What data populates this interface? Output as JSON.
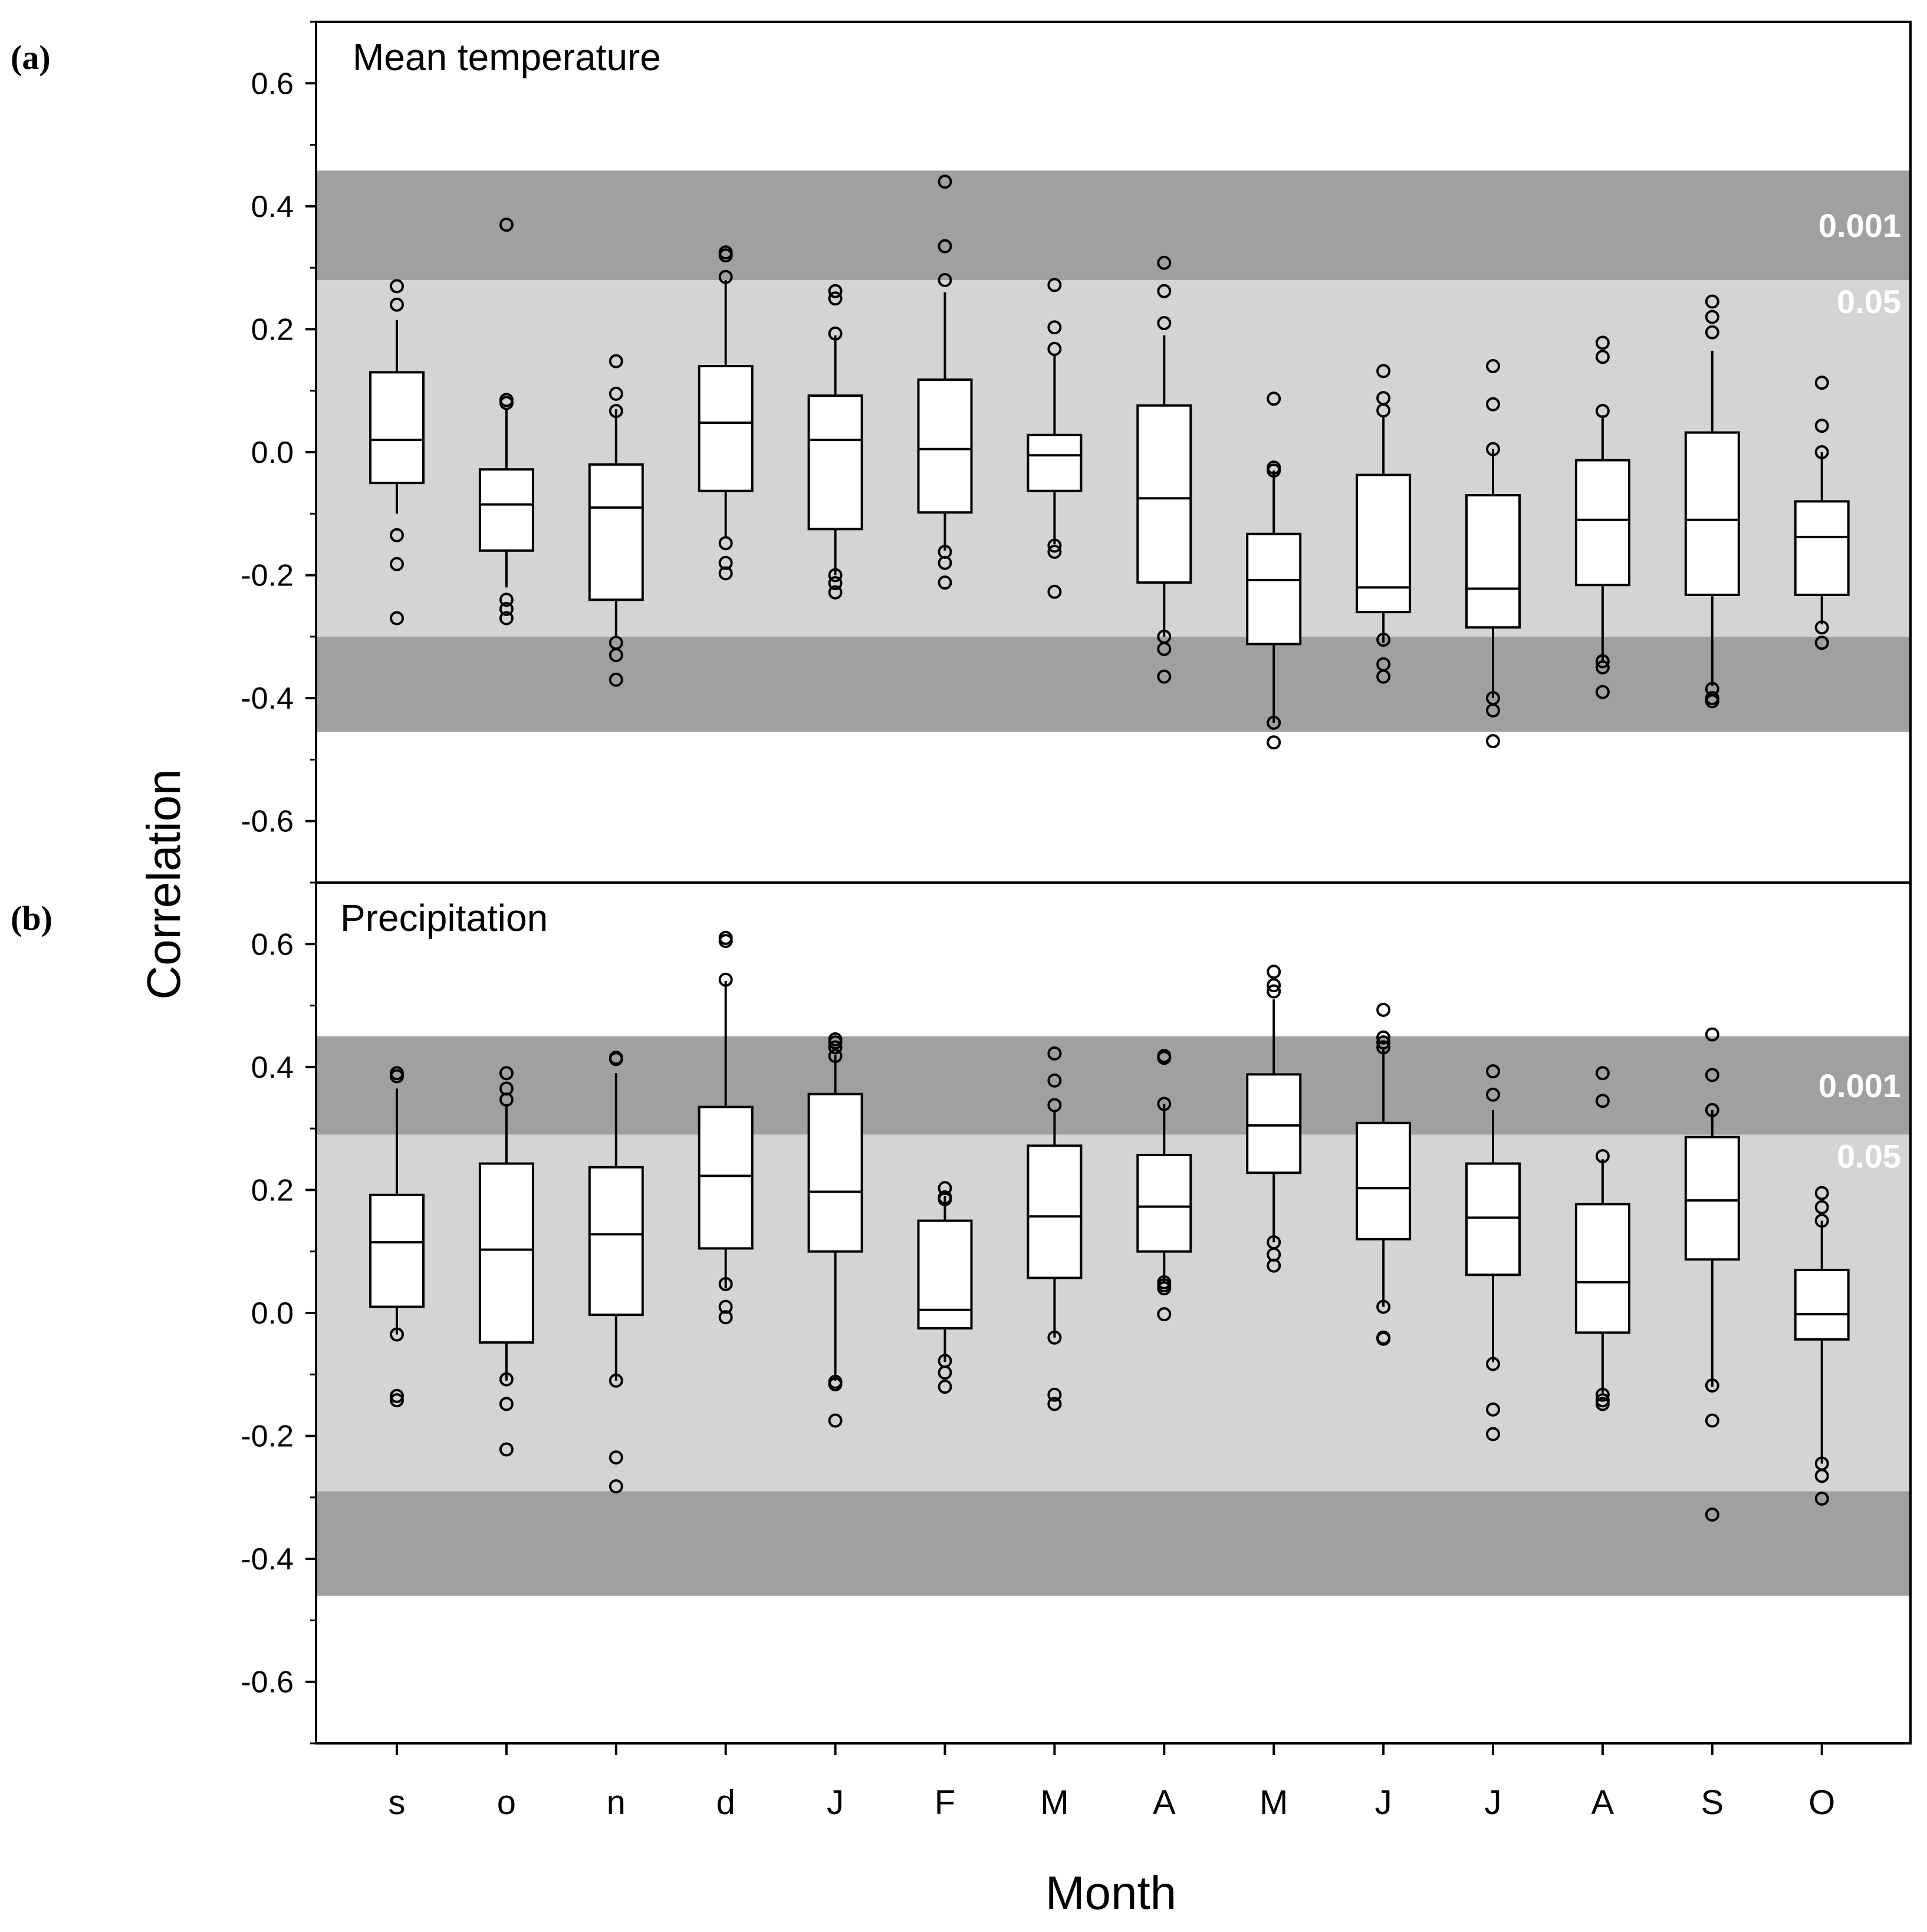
{
  "chart_data": {
    "type": "box",
    "xlabel": "Month",
    "ylabel": "Correlation",
    "categories": [
      "s",
      "o",
      "n",
      "d",
      "J",
      "F",
      "M",
      "A",
      "M",
      "J",
      "J",
      "A",
      "S",
      "O"
    ],
    "ylim": [
      -0.7,
      0.7
    ],
    "y_ticks": [
      "0.6",
      "0.4",
      "0.2",
      "0.0",
      "-0.2",
      "-0.4",
      "-0.6"
    ],
    "colors": {
      "band_001": "#a0a0a0",
      "band_05": "#d4d4d4",
      "box_fill": "#ffffff",
      "stroke": "#000000"
    },
    "panels": [
      {
        "letter": "(a)",
        "title": "Mean temperature",
        "bands": {
          "p05": [
            -0.3,
            0.28
          ],
          "p001": [
            -0.455,
            0.458
          ]
        },
        "band_labels": {
          "p001": "0.001",
          "p05": "0.05"
        },
        "boxes": [
          {
            "wlo": -0.1,
            "q1": -0.05,
            "med": 0.02,
            "q3": 0.13,
            "whi": 0.215,
            "outliers": [
              0.27,
              0.24,
              -0.135,
              -0.182,
              -0.27
            ]
          },
          {
            "wlo": -0.22,
            "q1": -0.16,
            "med": -0.085,
            "q3": -0.028,
            "whi": 0.07,
            "outliers": [
              0.37,
              0.085,
              0.08,
              -0.24,
              -0.255,
              -0.27
            ]
          },
          {
            "wlo": -0.3,
            "q1": -0.24,
            "med": -0.09,
            "q3": -0.02,
            "whi": 0.07,
            "outliers": [
              0.148,
              0.095,
              0.067,
              -0.31,
              -0.33,
              -0.37
            ]
          },
          {
            "wlo": -0.14,
            "q1": -0.063,
            "med": 0.048,
            "q3": 0.14,
            "whi": 0.28,
            "outliers": [
              0.325,
              0.32,
              0.285,
              -0.148,
              -0.18,
              -0.197
            ]
          },
          {
            "wlo": -0.2,
            "q1": -0.125,
            "med": 0.02,
            "q3": 0.092,
            "whi": 0.19,
            "outliers": [
              0.262,
              0.25,
              0.193,
              -0.2,
              -0.213,
              -0.228
            ]
          },
          {
            "wlo": -0.16,
            "q1": -0.098,
            "med": 0.005,
            "q3": 0.118,
            "whi": 0.26,
            "outliers": [
              0.44,
              0.335,
              0.28,
              -0.162,
              -0.18,
              -0.212
            ]
          },
          {
            "wlo": -0.15,
            "q1": -0.063,
            "med": -0.005,
            "q3": 0.028,
            "whi": 0.16,
            "outliers": [
              0.272,
              0.203,
              0.168,
              -0.152,
              -0.162,
              -0.227
            ]
          },
          {
            "wlo": -0.3,
            "q1": -0.212,
            "med": -0.075,
            "q3": 0.076,
            "whi": 0.19,
            "outliers": [
              0.308,
              0.262,
              0.21,
              -0.3,
              -0.32,
              -0.365
            ]
          },
          {
            "wlo": -0.44,
            "q1": -0.312,
            "med": -0.208,
            "q3": -0.133,
            "whi": -0.03,
            "outliers": [
              0.087,
              -0.025,
              -0.03,
              -0.44,
              -0.472
            ]
          },
          {
            "wlo": -0.31,
            "q1": -0.26,
            "med": -0.22,
            "q3": -0.037,
            "whi": 0.06,
            "outliers": [
              0.132,
              0.088,
              0.068,
              -0.305,
              -0.345,
              -0.365
            ]
          },
          {
            "wlo": -0.4,
            "q1": -0.285,
            "med": -0.222,
            "q3": -0.07,
            "whi": 0.005,
            "outliers": [
              0.14,
              0.078,
              0.005,
              -0.4,
              -0.42,
              -0.47
            ]
          },
          {
            "wlo": -0.34,
            "q1": -0.216,
            "med": -0.11,
            "q3": -0.013,
            "whi": 0.06,
            "outliers": [
              0.178,
              0.155,
              0.067,
              -0.34,
              -0.35,
              -0.39
            ]
          },
          {
            "wlo": -0.38,
            "q1": -0.232,
            "med": -0.11,
            "q3": 0.032,
            "whi": 0.165,
            "outliers": [
              0.245,
              0.22,
              0.195,
              -0.385,
              -0.4,
              -0.405
            ]
          },
          {
            "wlo": -0.28,
            "q1": -0.232,
            "med": -0.138,
            "q3": -0.08,
            "whi": 0.0,
            "outliers": [
              0.113,
              0.043,
              0.0,
              -0.285,
              -0.31,
              -0.31
            ]
          }
        ]
      },
      {
        "letter": "(b)",
        "title": "Precipitation",
        "bands": {
          "p05": [
            -0.29,
            0.29
          ],
          "p001": [
            -0.46,
            0.45
          ]
        },
        "band_labels": {
          "p001": "0.001",
          "p05": "0.05"
        },
        "boxes": [
          {
            "wlo": -0.035,
            "q1": 0.01,
            "med": 0.115,
            "q3": 0.192,
            "whi": 0.365,
            "outliers": [
              0.39,
              0.385,
              -0.035,
              -0.135,
              -0.142
            ]
          },
          {
            "wlo": -0.11,
            "q1": -0.048,
            "med": 0.103,
            "q3": 0.243,
            "whi": 0.34,
            "outliers": [
              0.39,
              0.365,
              0.347,
              -0.108,
              -0.148,
              -0.222
            ]
          },
          {
            "wlo": -0.11,
            "q1": -0.003,
            "med": 0.128,
            "q3": 0.237,
            "whi": 0.39,
            "outliers": [
              0.415,
              0.413,
              -0.11,
              -0.235,
              -0.282
            ]
          },
          {
            "wlo": 0.04,
            "q1": 0.105,
            "med": 0.223,
            "q3": 0.335,
            "whi": 0.54,
            "outliers": [
              0.61,
              0.605,
              0.542,
              0.047,
              0.01,
              -0.007
            ]
          },
          {
            "wlo": -0.11,
            "q1": 0.1,
            "med": 0.197,
            "q3": 0.356,
            "whi": 0.42,
            "outliers": [
              0.445,
              0.44,
              0.432,
              0.418,
              -0.112,
              -0.116,
              -0.175
            ]
          },
          {
            "wlo": -0.08,
            "q1": -0.025,
            "med": 0.005,
            "q3": 0.15,
            "whi": 0.19,
            "outliers": [
              0.203,
              0.188,
              0.185,
              -0.078,
              -0.097,
              -0.12
            ]
          },
          {
            "wlo": -0.04,
            "q1": 0.057,
            "med": 0.157,
            "q3": 0.272,
            "whi": 0.33,
            "outliers": [
              0.422,
              0.378,
              0.338,
              -0.04,
              -0.133,
              -0.148
            ]
          },
          {
            "wlo": 0.05,
            "q1": 0.1,
            "med": 0.173,
            "q3": 0.257,
            "whi": 0.34,
            "outliers": [
              0.418,
              0.415,
              0.34,
              0.05,
              0.045,
              0.04,
              -0.002
            ]
          },
          {
            "wlo": 0.115,
            "q1": 0.228,
            "med": 0.305,
            "q3": 0.388,
            "whi": 0.51,
            "outliers": [
              0.555,
              0.533,
              0.523,
              0.115,
              0.095,
              0.077
            ]
          },
          {
            "wlo": 0.01,
            "q1": 0.12,
            "med": 0.203,
            "q3": 0.309,
            "whi": 0.43,
            "outliers": [
              0.493,
              0.448,
              0.44,
              0.432,
              0.01,
              -0.04,
              -0.042
            ]
          },
          {
            "wlo": -0.08,
            "q1": 0.062,
            "med": 0.155,
            "q3": 0.243,
            "whi": 0.33,
            "outliers": [
              0.393,
              0.355,
              -0.083,
              -0.157,
              -0.197
            ]
          },
          {
            "wlo": -0.13,
            "q1": -0.032,
            "med": 0.05,
            "q3": 0.177,
            "whi": 0.25,
            "outliers": [
              0.39,
              0.345,
              0.255,
              -0.133,
              -0.142,
              -0.148
            ]
          },
          {
            "wlo": -0.12,
            "q1": 0.087,
            "med": 0.183,
            "q3": 0.286,
            "whi": 0.33,
            "outliers": [
              0.453,
              0.387,
              0.33,
              -0.118,
              -0.175,
              -0.328
            ]
          },
          {
            "wlo": -0.245,
            "q1": -0.043,
            "med": -0.002,
            "q3": 0.07,
            "whi": 0.15,
            "outliers": [
              0.195,
              0.172,
              0.15,
              -0.245,
              -0.265,
              -0.302
            ]
          }
        ]
      }
    ]
  }
}
